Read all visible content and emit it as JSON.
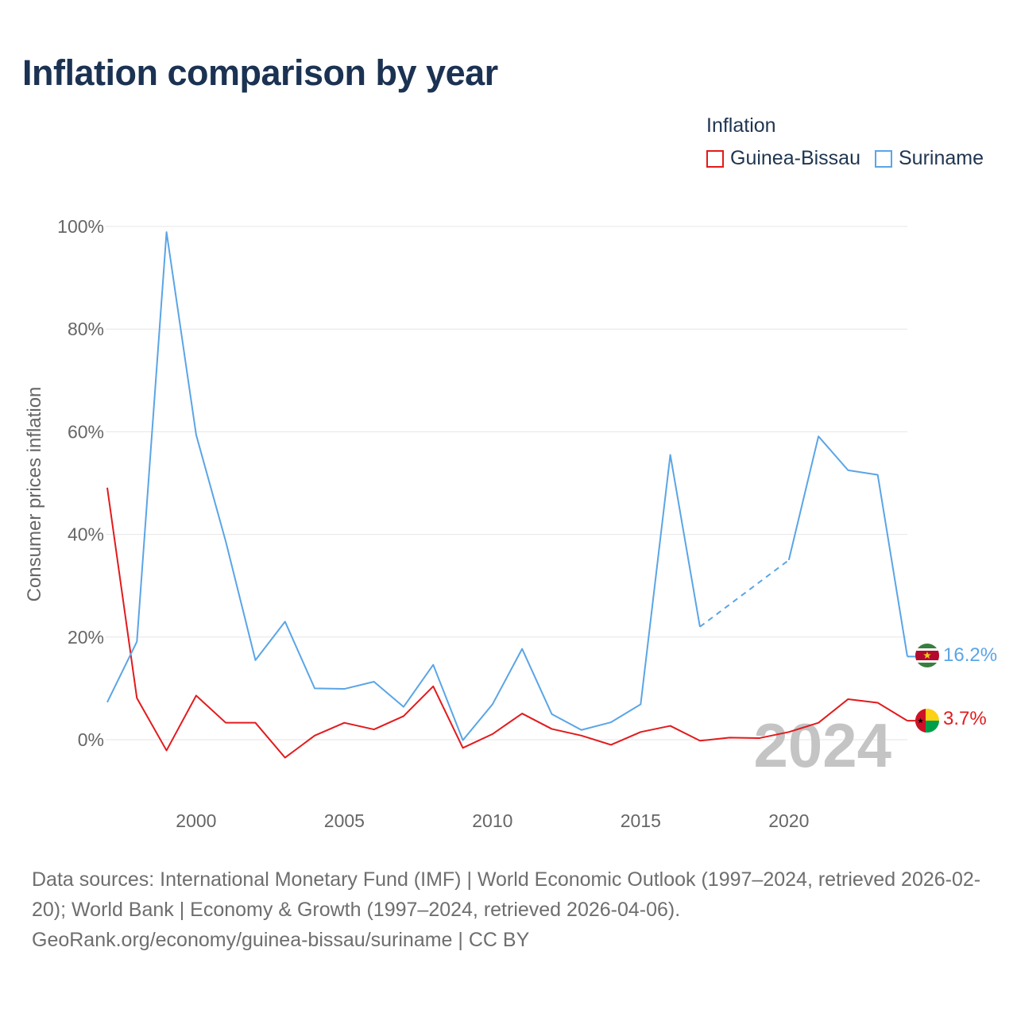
{
  "title": "Inflation comparison by year",
  "legend": {
    "title": "Inflation",
    "items": [
      {
        "label": "Guinea-Bissau",
        "color": "#e31a1c"
      },
      {
        "label": "Suriname",
        "color": "#5aa5e6"
      }
    ]
  },
  "footer": {
    "sources": "Data sources: International Monetary Fund (IMF) | World Economic Outlook (1997–2024, retrieved 2026-02-20); World Bank | Economy & Growth (1997–2024, retrieved 2026-04-06).",
    "credit": "GeoRank.org/economy/guinea-bissau/suriname | CC BY"
  },
  "chart_data": {
    "type": "line",
    "title": "Inflation comparison by year",
    "xlabel": "",
    "ylabel": "Consumer prices inflation",
    "xlim": [
      1997,
      2024
    ],
    "ylim": [
      -10,
      100
    ],
    "yticks": [
      0,
      20,
      40,
      60,
      80,
      100
    ],
    "ytick_labels": [
      "0%",
      "20%",
      "40%",
      "60%",
      "80%",
      "100%"
    ],
    "xticks": [
      2000,
      2005,
      2010,
      2015,
      2020
    ],
    "xtick_labels": [
      "2000",
      "2005",
      "2010",
      "2015",
      "2020"
    ],
    "grid": true,
    "watermark": "2024",
    "x": [
      1997,
      1998,
      1999,
      2000,
      2001,
      2002,
      2003,
      2004,
      2005,
      2006,
      2007,
      2008,
      2009,
      2010,
      2011,
      2012,
      2013,
      2014,
      2015,
      2016,
      2017,
      2018,
      2019,
      2020,
      2021,
      2022,
      2023,
      2024
    ],
    "series": [
      {
        "name": "Guinea-Bissau",
        "color": "#e31a1c",
        "end_label": "3.7%",
        "values": [
          49.1,
          8.1,
          -2.1,
          8.6,
          3.3,
          3.3,
          -3.5,
          0.8,
          3.3,
          2.0,
          4.6,
          10.4,
          -1.6,
          1.1,
          5.1,
          2.1,
          0.8,
          -1.0,
          1.5,
          2.7,
          -0.2,
          0.4,
          0.3,
          1.5,
          3.3,
          7.9,
          7.2,
          3.7
        ]
      },
      {
        "name": "Suriname",
        "color": "#5aa5e6",
        "end_label": "16.2%",
        "dashed_segment": [
          2017,
          2020
        ],
        "values": [
          7.3,
          19.1,
          98.9,
          59.4,
          38.6,
          15.5,
          23.0,
          10.0,
          9.9,
          11.3,
          6.4,
          14.6,
          -0.1,
          6.9,
          17.7,
          5.0,
          1.9,
          3.4,
          6.9,
          55.5,
          22.0,
          null,
          null,
          35.0,
          59.1,
          52.5,
          51.6,
          16.2
        ]
      }
    ]
  }
}
